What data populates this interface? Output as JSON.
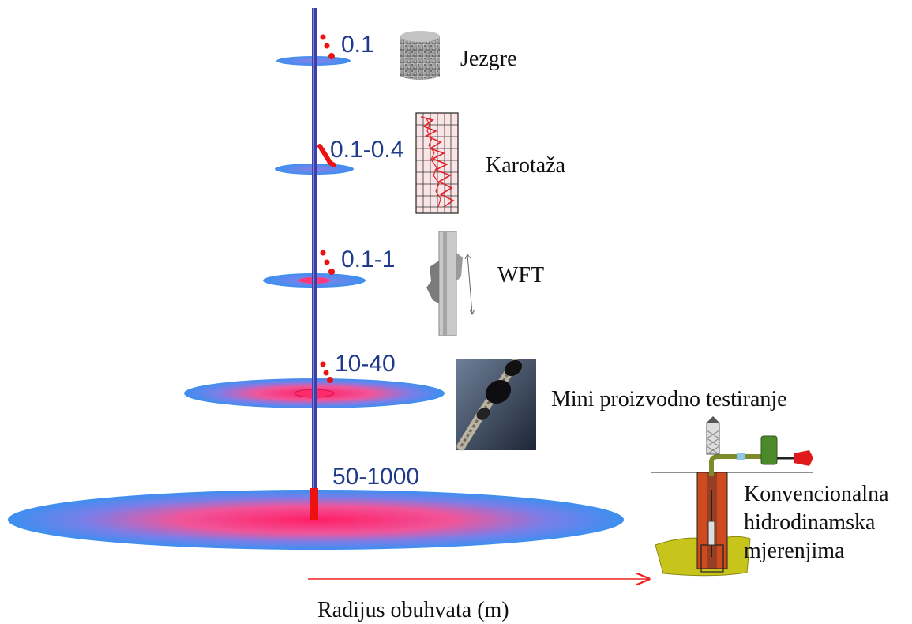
{
  "methods": [
    {
      "id": "cores",
      "radius_label": "0.1",
      "method_label": "Jezgre",
      "icon": "core-sample-icon"
    },
    {
      "id": "logging",
      "radius_label": "0.1-0.4",
      "method_label": "Karotaža",
      "icon": "well-log-icon"
    },
    {
      "id": "wft",
      "radius_label": "0.1-1",
      "method_label": "WFT",
      "icon": "wireline-tool-icon"
    },
    {
      "id": "mini-test",
      "radius_label": "10-40",
      "method_label": "Mini proizvodno testiranje",
      "icon": "downhole-packer-icon"
    },
    {
      "id": "conventional",
      "radius_label": "50-1000",
      "method_label_lines": [
        "Konvencionalna",
        "hidrodinamska",
        "mjerenjima"
      ],
      "icon": "wellhead-test-icon"
    }
  ],
  "axis_label": "Radijus obuhvata (m)",
  "colors": {
    "wellbore": "#3b3fa8",
    "disk_outer": "#3d8ff0",
    "disk_inner": "#ff2a6a",
    "perforation": "#ee1111",
    "arrow": "#ee2222",
    "label_blue": "#1f3a8a"
  }
}
